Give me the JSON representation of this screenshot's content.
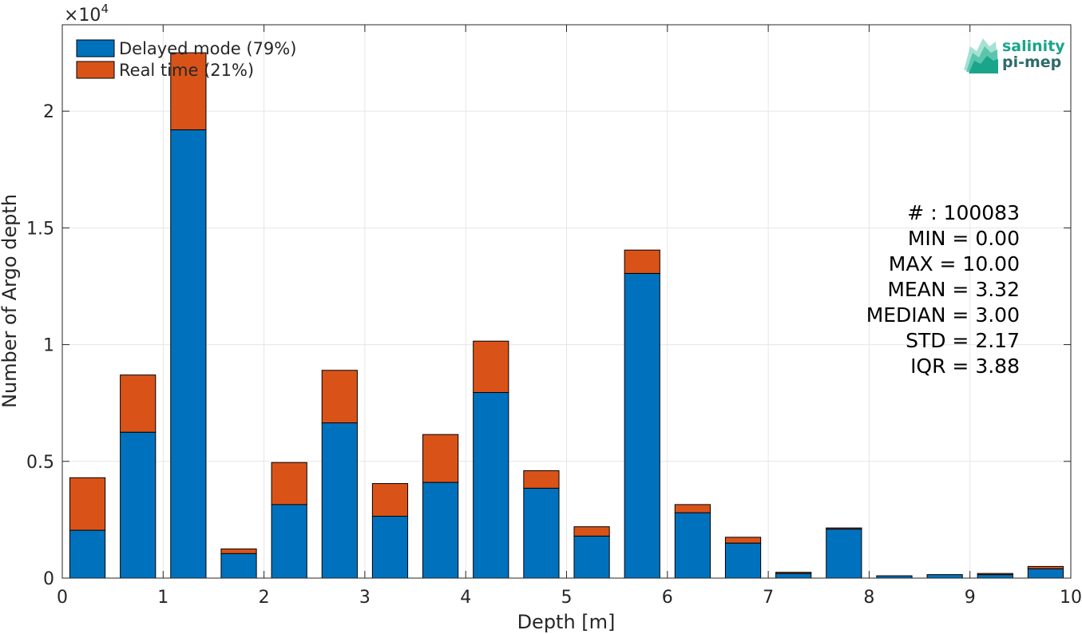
{
  "colors": {
    "delayed": "#0072BD",
    "realtime": "#D95319",
    "logo_green": "#1aa58a",
    "logo_dark": "#2e6b6b"
  },
  "logo": {
    "line1": "salinity",
    "line2": "pi-mep"
  },
  "stats": {
    "lines": [
      "# : 100083",
      "MIN = 0.00",
      "MAX =  10.00",
      "MEAN = 3.32",
      "MEDIAN = 3.00",
      "STD = 2.17",
      "IQR = 3.88"
    ]
  },
  "chart_data": {
    "type": "bar",
    "stacked": true,
    "xlabel": "Depth [m]",
    "ylabel": "Number of Argo depth",
    "y_exponent_label": "×10",
    "y_exponent_power": "4",
    "xlim": [
      0,
      10
    ],
    "ylim": [
      0,
      23700
    ],
    "xticks": [
      0,
      1,
      2,
      3,
      4,
      5,
      6,
      7,
      8,
      9,
      10
    ],
    "xtick_labels": [
      "0",
      "1",
      "2",
      "3",
      "4",
      "5",
      "6",
      "7",
      "8",
      "9",
      "10"
    ],
    "yticks": [
      0,
      5000,
      10000,
      15000,
      20000
    ],
    "ytick_labels": [
      "0",
      "0.5",
      "1",
      "1.5",
      "2"
    ],
    "grid": true,
    "legend_position": "top-left",
    "bar_width": 0.35,
    "x": [
      0.25,
      0.75,
      1.25,
      1.75,
      2.25,
      2.75,
      3.25,
      3.75,
      4.25,
      4.75,
      5.25,
      5.75,
      6.25,
      6.75,
      7.25,
      7.75,
      8.25,
      8.75,
      9.25,
      9.75
    ],
    "series": [
      {
        "name": "Delayed mode (79%)",
        "values": [
          2050,
          6250,
          19200,
          1050,
          3150,
          6650,
          2650,
          4100,
          7950,
          3850,
          1800,
          13050,
          2800,
          1500,
          200,
          2100,
          100,
          150,
          150,
          400
        ]
      },
      {
        "name": "Real time (21%)",
        "values": [
          2250,
          2450,
          3300,
          200,
          1800,
          2250,
          1400,
          2050,
          2200,
          750,
          400,
          1000,
          350,
          250,
          50,
          50,
          0,
          0,
          50,
          100
        ]
      }
    ]
  }
}
